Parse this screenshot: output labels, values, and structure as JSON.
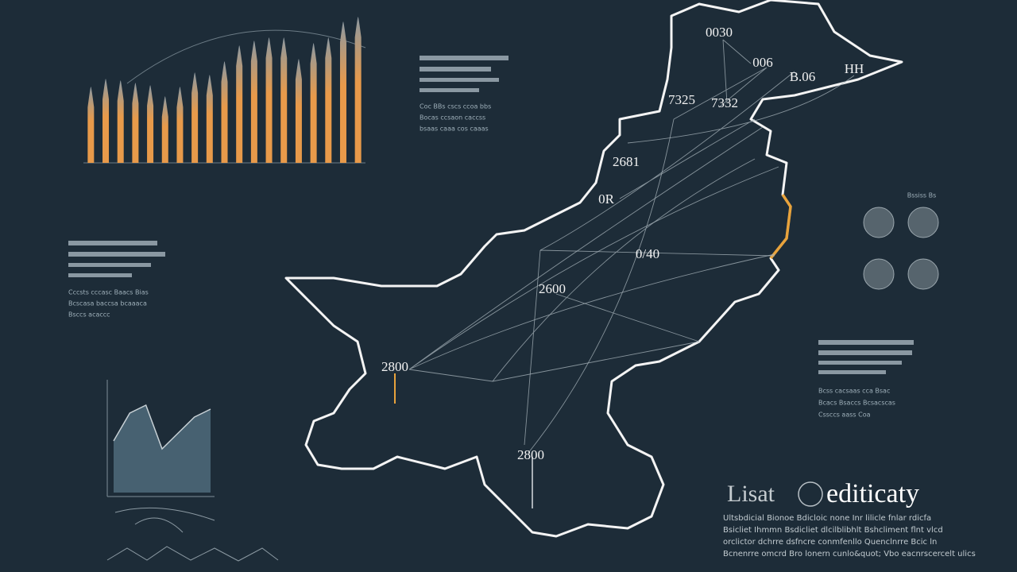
{
  "chart_data": [
    {
      "type": "bar",
      "categories": [
        null,
        null,
        null,
        null,
        null,
        null,
        null,
        null,
        null,
        null,
        null,
        null,
        null,
        null,
        null,
        null,
        null,
        null,
        null
      ],
      "values": [
        95,
        105,
        103,
        100,
        97,
        83,
        95,
        113,
        110,
        127,
        147,
        153,
        157,
        157,
        130,
        150,
        157,
        177,
        183
      ],
      "color": "#e89a4a",
      "ylim": [
        0,
        200
      ]
    },
    {
      "type": "area",
      "categories": [
        null,
        null,
        null,
        null,
        null,
        null,
        null
      ],
      "values": [
        65,
        100,
        110,
        55,
        75,
        95,
        105
      ],
      "color": "#4d6778",
      "ylim": [
        0,
        150
      ]
    }
  ],
  "map": {
    "labels": [
      "0030",
      "006",
      "B.06",
      "HH",
      "7325",
      "7332",
      "2681",
      "0R",
      "0/40",
      "2600",
      "2800",
      "2800"
    ]
  },
  "panels": {
    "top_note": [
      "Coc BBs cscs ccoa bbs",
      "Bocas ccsaon caccss",
      "bsaas caaa cos caaas"
    ],
    "left_note": [
      "Cccsts cccasc Baacs Bias",
      "Bcscasa baccsa bcaaaca",
      "Bsccs acaccc"
    ],
    "right_title": "Bssiss Bs",
    "right_note": [
      "Bcss cacsaas cca Bsac",
      "Bcacs Bsaccs Bcsacscas",
      "Cssccs aass Coa"
    ]
  },
  "footer": {
    "title": "Lisat",
    "word": "editicaty",
    "lines": [
      "Ultsbdicial Bionoe Bdicloic none Inr lilicle fnlar rdicfa",
      "Bsicliet Ihmmn Bsdicliet dlcilblibhlt Bshcliment flnt vlcd",
      "orclictor dchrre dsfncre conmfenllo Quenclnrre Bcic ln",
      "Bcnenrre omcrd Bro lonern cunlo&quot; Vbo eacnrscercelt ulics"
    ]
  }
}
